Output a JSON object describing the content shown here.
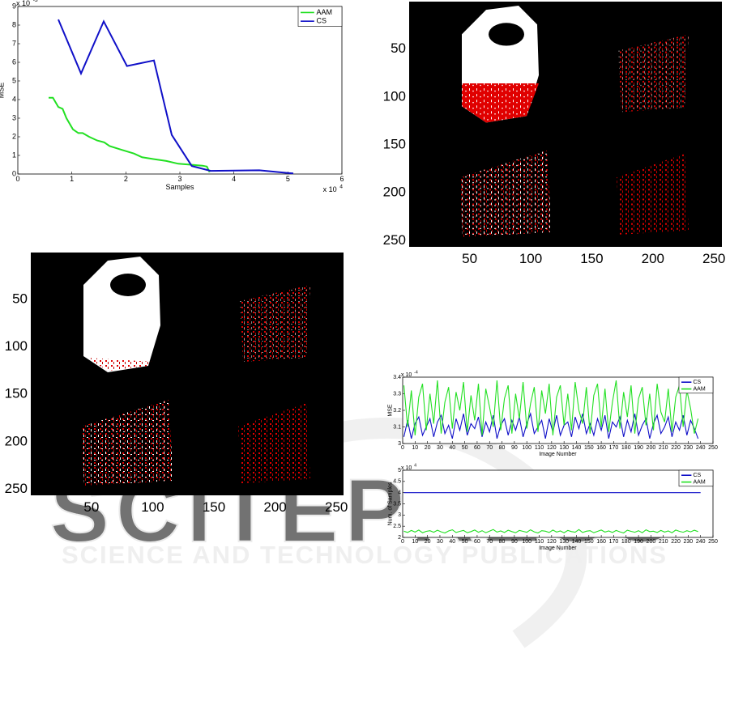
{
  "watermark": {
    "logo": "SCITEPRESS",
    "tagline": "SCIENCE AND TECHNOLOGY PUBLICATIONS"
  },
  "chart_data": [
    {
      "type": "line",
      "xlabel": "Samples",
      "ylabel": "MSE",
      "x_multiplier": {
        "base": "x 10",
        "exponent": "4"
      },
      "y_multiplier": {
        "base": "x 10",
        "exponent": "-3"
      },
      "xlim": [
        0,
        6
      ],
      "ylim": [
        0,
        9
      ],
      "xticks": [
        0,
        1,
        2,
        3,
        4,
        5,
        6
      ],
      "yticks": [
        0,
        1,
        2,
        3,
        4,
        5,
        6,
        7,
        8,
        9
      ],
      "legend": "upper right",
      "series": [
        {
          "name": "AAM",
          "color": "#22e022",
          "x": [
            0.57,
            0.65,
            0.75,
            0.83,
            0.9,
            1.02,
            1.12,
            1.2,
            1.32,
            1.47,
            1.6,
            1.7,
            1.92,
            2.15,
            2.3,
            2.52,
            2.75,
            2.97,
            3.2,
            3.42,
            3.5,
            3.55
          ],
          "values": [
            4.1,
            4.1,
            3.6,
            3.5,
            3.0,
            2.4,
            2.2,
            2.2,
            2.0,
            1.8,
            1.7,
            1.5,
            1.3,
            1.1,
            0.9,
            0.8,
            0.7,
            0.55,
            0.5,
            0.45,
            0.4,
            0.1
          ]
        },
        {
          "name": "CS",
          "color": "#1010c8",
          "x": [
            0.75,
            1.17,
            1.59,
            2.02,
            2.52,
            2.85,
            3.22,
            3.57,
            4.47,
            5.0,
            5.1
          ],
          "values": [
            8.3,
            5.4,
            8.2,
            5.8,
            6.1,
            2.1,
            0.43,
            0.17,
            0.2,
            0.05,
            0.03
          ]
        }
      ]
    },
    {
      "type": "image",
      "xlim": [
        0.5,
        256.5
      ],
      "ylim": [
        256.5,
        0.5
      ],
      "xticks": [
        50,
        100,
        150,
        200,
        250
      ],
      "yticks": [
        50,
        100,
        150,
        200,
        250
      ]
    },
    {
      "type": "image",
      "xlim": [
        0.5,
        256.5
      ],
      "ylim": [
        256.5,
        0.5
      ],
      "xticks": [
        50,
        100,
        150,
        200,
        250
      ],
      "yticks": [
        50,
        100,
        150,
        200,
        250
      ]
    },
    {
      "type": "line",
      "xlabel": "Image Number",
      "ylabel": "MSE",
      "y_multiplier": {
        "base": "x 10",
        "exponent": "-4"
      },
      "xlim": [
        0,
        250
      ],
      "ylim": [
        3,
        3.4
      ],
      "xticks": [
        0,
        10,
        20,
        30,
        40,
        50,
        60,
        70,
        80,
        90,
        100,
        110,
        120,
        130,
        140,
        150,
        160,
        170,
        180,
        190,
        200,
        210,
        220,
        230,
        240,
        250
      ],
      "yticks": [
        3,
        3.1,
        3.2,
        3.3,
        3.4
      ],
      "legend": "upper right",
      "x": [
        1,
        4,
        7,
        10,
        13,
        16,
        19,
        22,
        25,
        28,
        31,
        34,
        37,
        40,
        43,
        46,
        49,
        52,
        55,
        58,
        61,
        64,
        67,
        70,
        73,
        76,
        79,
        82,
        85,
        88,
        91,
        94,
        97,
        100,
        103,
        106,
        109,
        112,
        115,
        118,
        121,
        124,
        127,
        130,
        133,
        136,
        139,
        142,
        145,
        148,
        151,
        154,
        157,
        160,
        163,
        166,
        169,
        172,
        175,
        178,
        181,
        184,
        187,
        190,
        193,
        196,
        199,
        202,
        205,
        208,
        211,
        214,
        217,
        220,
        223,
        226,
        229,
        232,
        235,
        238
      ],
      "series": [
        {
          "name": "CS",
          "color": "#1010c8",
          "values": [
            3.04,
            3.14,
            3.03,
            3.12,
            3.16,
            3.05,
            3.1,
            3.15,
            3.04,
            3.13,
            3.17,
            3.06,
            3.11,
            3.03,
            3.15,
            3.08,
            3.18,
            3.05,
            3.12,
            3.09,
            3.16,
            3.04,
            3.13,
            3.07,
            3.17,
            3.03,
            3.11,
            3.15,
            3.05,
            3.14,
            3.08,
            3.16,
            3.04,
            3.12,
            3.18,
            3.06,
            3.1,
            3.14,
            3.03,
            3.15,
            3.07,
            3.17,
            3.05,
            3.11,
            3.13,
            3.04,
            3.16,
            3.09,
            3.18,
            3.06,
            3.12,
            3.05,
            3.15,
            3.08,
            3.17,
            3.03,
            3.13,
            3.1,
            3.16,
            3.04,
            3.14,
            3.07,
            3.18,
            3.05,
            3.11,
            3.15,
            3.03,
            3.12,
            3.17,
            3.06,
            3.1,
            3.16,
            3.04,
            3.13,
            3.08,
            3.17,
            3.05,
            3.14,
            3.09,
            3.03
          ]
        },
        {
          "name": "AAM",
          "color": "#22e022",
          "values": [
            3.35,
            3.1,
            3.32,
            3.05,
            3.28,
            3.36,
            3.08,
            3.3,
            3.12,
            3.38,
            3.06,
            3.25,
            3.34,
            3.09,
            3.31,
            3.2,
            3.37,
            3.07,
            3.29,
            3.14,
            3.36,
            3.05,
            3.33,
            3.22,
            3.1,
            3.38,
            3.08,
            3.27,
            3.35,
            3.06,
            3.3,
            3.15,
            3.37,
            3.09,
            3.24,
            3.34,
            3.07,
            3.32,
            3.18,
            3.36,
            3.05,
            3.28,
            3.35,
            3.11,
            3.3,
            3.08,
            3.37,
            3.2,
            3.12,
            3.34,
            3.06,
            3.29,
            3.36,
            3.1,
            3.33,
            3.07,
            3.25,
            3.38,
            3.09,
            3.31,
            3.16,
            3.35,
            3.06,
            3.27,
            3.34,
            3.11,
            3.3,
            3.08,
            3.36,
            3.19,
            3.13,
            3.33,
            3.07,
            3.28,
            3.35,
            3.1,
            3.32,
            3.21,
            3.06,
            3.15
          ]
        }
      ]
    },
    {
      "type": "line",
      "xlabel": "Image Number",
      "ylabel": "Num. of Samples",
      "y_multiplier": {
        "base": "x 10",
        "exponent": "4"
      },
      "xlim": [
        0,
        250
      ],
      "ylim": [
        2,
        5
      ],
      "xticks": [
        0,
        10,
        20,
        30,
        40,
        50,
        60,
        70,
        80,
        90,
        100,
        110,
        120,
        130,
        140,
        150,
        160,
        170,
        180,
        190,
        200,
        210,
        220,
        230,
        240,
        250
      ],
      "yticks": [
        2,
        2.5,
        3,
        3.5,
        4,
        4.5,
        5
      ],
      "legend": "upper right",
      "x": [
        1,
        4,
        7,
        10,
        13,
        16,
        19,
        22,
        25,
        28,
        31,
        34,
        37,
        40,
        43,
        46,
        49,
        52,
        55,
        58,
        61,
        64,
        67,
        70,
        73,
        76,
        79,
        82,
        85,
        88,
        91,
        94,
        97,
        100,
        103,
        106,
        109,
        112,
        115,
        118,
        121,
        124,
        127,
        130,
        133,
        136,
        139,
        142,
        145,
        148,
        151,
        154,
        157,
        160,
        163,
        166,
        169,
        172,
        175,
        178,
        181,
        184,
        187,
        190,
        193,
        196,
        199,
        202,
        205,
        208,
        211,
        214,
        217,
        220,
        223,
        226,
        229,
        232,
        235,
        238
      ],
      "series": [
        {
          "name": "CS",
          "color": "#1010c8",
          "x": [
            1,
            240
          ],
          "values": [
            4,
            4
          ]
        },
        {
          "name": "AAM",
          "color": "#22e022",
          "values": [
            2.28,
            2.22,
            2.31,
            2.24,
            2.33,
            2.21,
            2.27,
            2.3,
            2.23,
            2.32,
            2.25,
            2.2,
            2.29,
            2.34,
            2.22,
            2.27,
            2.31,
            2.21,
            2.26,
            2.33,
            2.23,
            2.3,
            2.21,
            2.28,
            2.35,
            2.24,
            2.29,
            2.22,
            2.32,
            2.26,
            2.21,
            2.31,
            2.27,
            2.23,
            2.34,
            2.25,
            2.2,
            2.3,
            2.28,
            2.22,
            2.33,
            2.24,
            2.29,
            2.21,
            2.31,
            2.26,
            2.23,
            2.35,
            2.22,
            2.28,
            2.3,
            2.21,
            2.27,
            2.33,
            2.24,
            2.29,
            2.22,
            2.31,
            2.25,
            2.2,
            2.32,
            2.27,
            2.23,
            2.3,
            2.21,
            2.34,
            2.26,
            2.28,
            2.22,
            2.31,
            2.24,
            2.29,
            2.21,
            2.33,
            2.27,
            2.23,
            2.3,
            2.25,
            2.32,
            2.26
          ]
        }
      ]
    }
  ]
}
